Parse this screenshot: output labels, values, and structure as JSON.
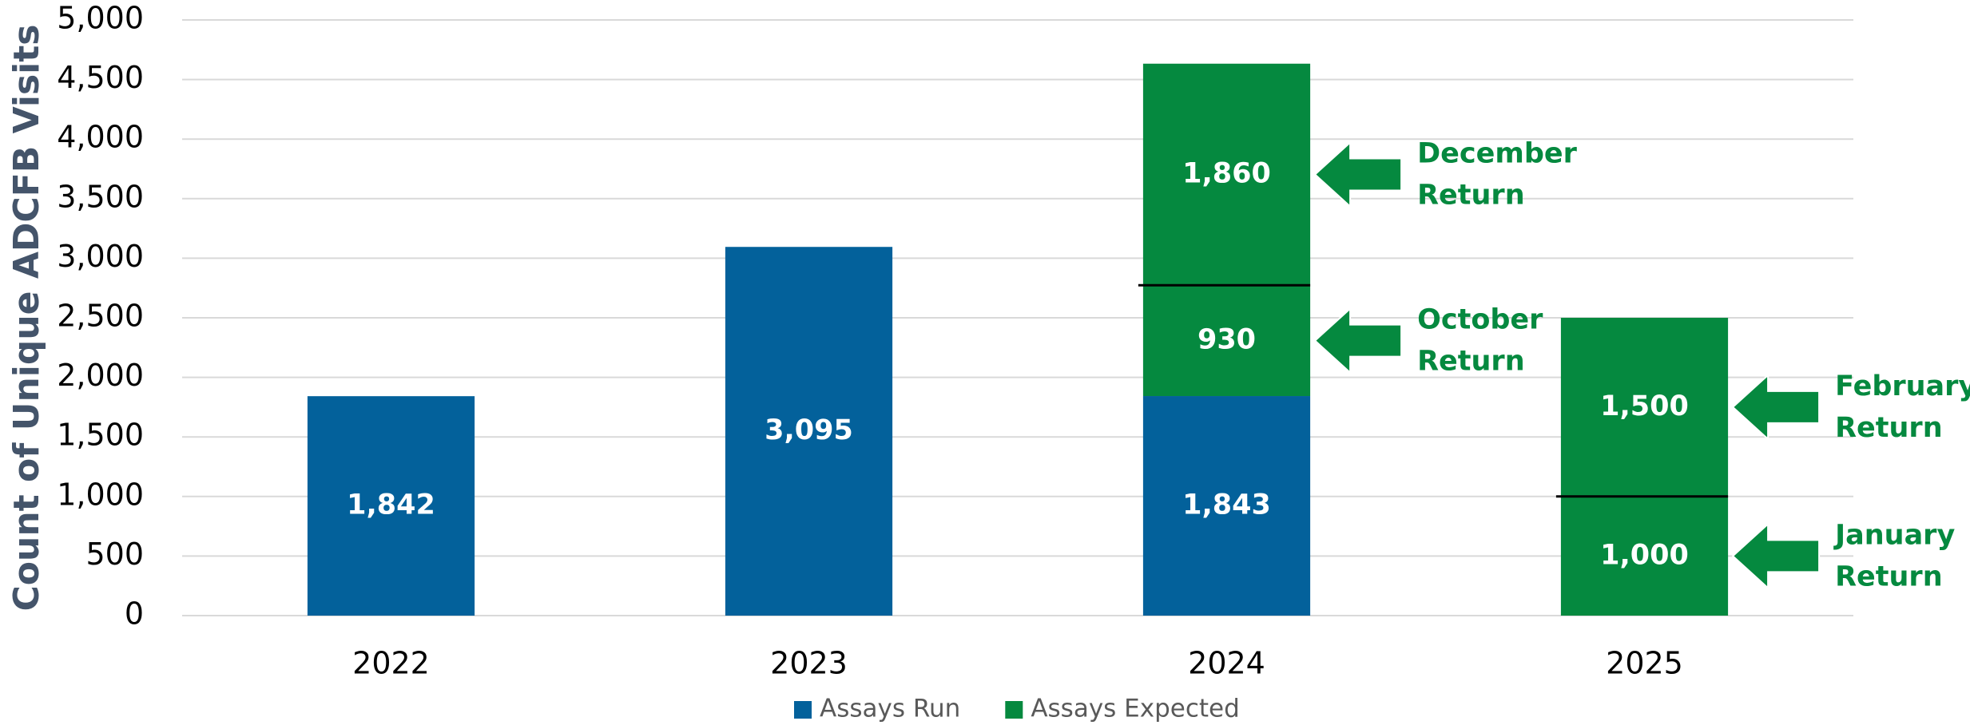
{
  "chart_data": {
    "type": "stacked-bar",
    "y_label": "Count of Unique ADCFB Visits",
    "categories": [
      "2022",
      "2023",
      "2024",
      "2025"
    ],
    "series": [
      {
        "name": "Assays Run",
        "color": "#03619b",
        "values": [
          1842,
          3095,
          1843,
          null
        ],
        "value_labels": [
          "1,842",
          "3,095",
          "1,843",
          null
        ]
      },
      {
        "name": "Assays Expected",
        "color": "#05893f",
        "values": [
          null,
          null,
          [
            930,
            1860
          ],
          [
            1000,
            1500
          ]
        ],
        "value_labels": [
          null,
          null,
          [
            "930",
            "1,860"
          ],
          [
            "1,000",
            "1,500"
          ]
        ]
      }
    ],
    "annotations": [
      {
        "lines": [
          "December",
          "Return"
        ],
        "color": "#05893f"
      },
      {
        "lines": [
          "October",
          "Return"
        ],
        "color": "#05893f"
      },
      {
        "lines": [
          "February",
          "Return"
        ],
        "color": "#05893f"
      },
      {
        "lines": [
          "January",
          "Return"
        ],
        "color": "#05893f"
      }
    ],
    "ylim": [
      0,
      5000
    ],
    "yticks": [
      0,
      500,
      {
        "value": 1000,
        "label": "1,000"
      },
      {
        "value": 1500,
        "label": "1,500"
      },
      {
        "value": 2000,
        "label": "2,000"
      },
      {
        "value": 2500,
        "label": "2,500"
      },
      {
        "value": 3000,
        "label": "3,000"
      },
      {
        "value": 3500,
        "label": "3,500"
      },
      {
        "value": 4000,
        "label": "4,000"
      },
      {
        "value": 4500,
        "label": "4,500"
      },
      {
        "value": 5000,
        "label": "5,000"
      }
    ],
    "grid": true,
    "legend": "bottom"
  }
}
